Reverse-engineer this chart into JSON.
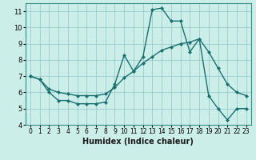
{
  "xlabel": "Humidex (Indice chaleur)",
  "xlim": [
    -0.5,
    23.5
  ],
  "ylim": [
    4,
    11.5
  ],
  "yticks": [
    4,
    5,
    6,
    7,
    8,
    9,
    10,
    11
  ],
  "xticks": [
    0,
    1,
    2,
    3,
    4,
    5,
    6,
    7,
    8,
    9,
    10,
    11,
    12,
    13,
    14,
    15,
    16,
    17,
    18,
    19,
    20,
    21,
    22,
    23
  ],
  "background_color": "#cceee8",
  "grid_color": "#99cccc",
  "line_color": "#1a7070",
  "line1_x": [
    0,
    1,
    2,
    3,
    4,
    5,
    6,
    7,
    8,
    9,
    10,
    11,
    12,
    13,
    14,
    15,
    16,
    17,
    18,
    19,
    20,
    21,
    22,
    23
  ],
  "line1_y": [
    7.0,
    6.8,
    6.0,
    5.5,
    5.5,
    5.3,
    5.3,
    5.3,
    5.4,
    6.5,
    8.3,
    7.3,
    8.2,
    11.1,
    11.2,
    10.4,
    10.4,
    8.5,
    9.3,
    5.8,
    5.0,
    4.3,
    5.0,
    5.0
  ],
  "line2_x": [
    0,
    1,
    2,
    3,
    4,
    5,
    6,
    7,
    8,
    9,
    10,
    11,
    12,
    13,
    14,
    15,
    16,
    17,
    18,
    19,
    20,
    21,
    22,
    23
  ],
  "line2_y": [
    7.0,
    6.8,
    6.2,
    6.0,
    5.9,
    5.8,
    5.8,
    5.8,
    5.9,
    6.3,
    6.9,
    7.3,
    7.8,
    8.2,
    8.6,
    8.8,
    9.0,
    9.1,
    9.3,
    8.5,
    7.5,
    6.5,
    6.0,
    5.8
  ],
  "marker": "D",
  "marker_size": 2,
  "linewidth": 1.0,
  "xlabel_fontsize": 7,
  "tick_fontsize": 6
}
